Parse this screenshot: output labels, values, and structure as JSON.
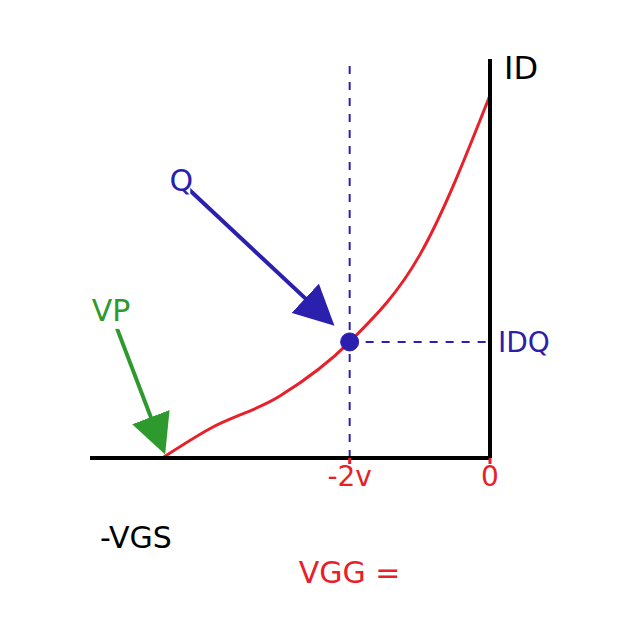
{
  "chart_data": {
    "type": "line",
    "x_label": "-VGS",
    "y_label": "ID",
    "x": [
      -4.67,
      -4,
      -3,
      -2,
      -1,
      0
    ],
    "series": [
      {
        "values": [
          0,
          0.8,
          1.7,
          3.2,
          5.6,
          10
        ],
        "color": "#e8202a",
        "line_style": "solid",
        "marker": "none"
      }
    ],
    "xlim": [
      -5.7,
      0
    ],
    "xticks": [
      {
        "value": -2,
        "label": "-2v"
      },
      0
    ],
    "ylim": [
      0,
      11
    ],
    "yticks": [
      {
        "value": 3.2,
        "label": "IDQ"
      }
    ],
    "grid": false,
    "q_point": {
      "x": -2,
      "y": 3.2,
      "color": "#2b1fae"
    },
    "annotations": [
      {
        "text": "Q",
        "x": -4.4,
        "y": 7.6,
        "color": "#2b1fae",
        "points_to": {
          "x": -2.3,
          "y": 3.8
        }
      },
      {
        "text": "VP",
        "x": -5.4,
        "y": 4.0,
        "color": "#2e9a2e",
        "points_to": {
          "x": -4.67,
          "y": 0.3
        }
      },
      {
        "text": "VGG =",
        "x": -2,
        "y": -3.2,
        "color": "#e8202a"
      }
    ]
  }
}
